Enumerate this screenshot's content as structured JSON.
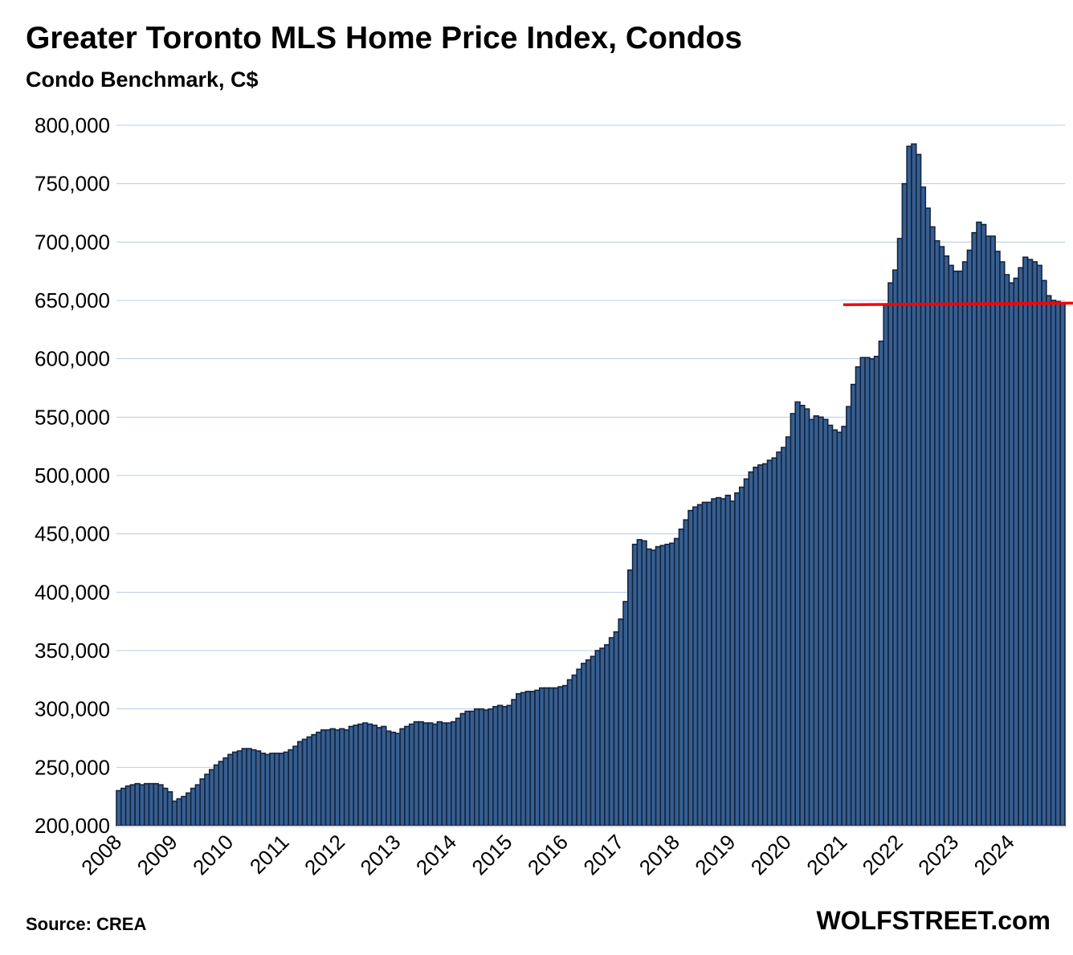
{
  "chart_data": {
    "type": "bar",
    "title": "Greater Toronto MLS Home Price Index, Condos",
    "subtitle": "Condo Benchmark, C$",
    "xlabel": "",
    "ylabel": "",
    "ylim": [
      200000,
      800000
    ],
    "yticks": [
      200000,
      250000,
      300000,
      350000,
      400000,
      450000,
      500000,
      550000,
      600000,
      650000,
      700000,
      750000,
      800000
    ],
    "ytick_labels": [
      "200,000",
      "250,000",
      "300,000",
      "350,000",
      "400,000",
      "450,000",
      "500,000",
      "550,000",
      "600,000",
      "650,000",
      "700,000",
      "750,000",
      "800,000"
    ],
    "grid": true,
    "frequency": "monthly",
    "years": [
      "2008",
      "2009",
      "2010",
      "2011",
      "2012",
      "2013",
      "2014",
      "2015",
      "2016",
      "2017",
      "2018",
      "2019",
      "2020",
      "2021",
      "2022",
      "2023",
      "2024"
    ],
    "values": [
      230000,
      232000,
      234000,
      235000,
      236000,
      235000,
      236000,
      236000,
      236000,
      235000,
      232000,
      229000,
      221000,
      223000,
      225000,
      228000,
      232000,
      235000,
      240000,
      244000,
      248000,
      252000,
      255000,
      258000,
      261000,
      263000,
      264000,
      266000,
      266000,
      265000,
      264000,
      262000,
      261000,
      262000,
      262000,
      262000,
      263000,
      265000,
      268000,
      272000,
      274000,
      276000,
      278000,
      280000,
      282000,
      282000,
      283000,
      282000,
      283000,
      282000,
      285000,
      286000,
      287000,
      288000,
      287000,
      286000,
      284000,
      285000,
      281000,
      280000,
      279000,
      283000,
      285000,
      287000,
      289000,
      289000,
      288000,
      288000,
      287000,
      289000,
      288000,
      288000,
      289000,
      292000,
      296000,
      298000,
      298000,
      300000,
      300000,
      299000,
      300000,
      302000,
      303000,
      302000,
      303000,
      308000,
      313000,
      314000,
      315000,
      315000,
      316000,
      318000,
      318000,
      318000,
      318000,
      319000,
      320000,
      325000,
      329000,
      334000,
      339000,
      342000,
      345000,
      350000,
      352000,
      355000,
      361000,
      366000,
      377000,
      392000,
      419000,
      441000,
      445000,
      444000,
      437000,
      436000,
      439000,
      440000,
      441000,
      442000,
      446000,
      454000,
      462000,
      470000,
      473000,
      475000,
      477000,
      477000,
      480000,
      481000,
      480000,
      483000,
      478000,
      485000,
      490000,
      497000,
      503000,
      507000,
      509000,
      510000,
      513000,
      515000,
      520000,
      524000,
      533000,
      553000,
      563000,
      560000,
      557000,
      548000,
      551000,
      550000,
      548000,
      543000,
      539000,
      537000,
      542000,
      559000,
      578000,
      593000,
      601000,
      601000,
      600000,
      602000,
      615000,
      646000,
      665000,
      676000,
      703000,
      750000,
      782000,
      784000,
      775000,
      747000,
      729000,
      713000,
      701000,
      696000,
      688000,
      680000,
      675000,
      675000,
      683000,
      693000,
      708000,
      717000,
      715000,
      705000,
      705000,
      692000,
      683000,
      672000,
      665000,
      669000,
      678000,
      687000,
      685000,
      683000,
      680000,
      667000,
      654000,
      650000,
      649000,
      648000
    ],
    "reference_line": {
      "value": 647000,
      "color": "#ff0000",
      "from_index": 157
    },
    "colors": {
      "bar_fill": "#365f91",
      "bar_stroke": "#14243f",
      "grid": "#b8cce4"
    },
    "source": "Source: CREA",
    "brand": "WOLFSTREET.com"
  }
}
